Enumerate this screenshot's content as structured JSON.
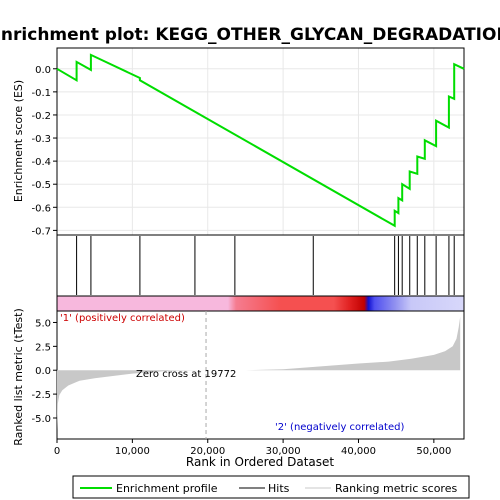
{
  "title": "Enrichment plot: KEGG_OTHER_GLYCAN_DEGRADATION",
  "colors": {
    "es_line": "#00dd00",
    "hit_line": "#000000",
    "metric_fill": "#c8c8c8",
    "zero_line": "#aaaaaa",
    "pos_label": "#cc0000",
    "neg_label": "#0000cc"
  },
  "chart_data": [
    {
      "panel": "enrichment-score",
      "type": "line",
      "ylabel": "Enrichment score (ES)",
      "xlim": [
        0,
        54000
      ],
      "ylim": [
        -0.72,
        0.09
      ],
      "yticks": [
        0.0,
        -0.1,
        -0.2,
        -0.3,
        -0.4,
        -0.5,
        -0.6,
        -0.7
      ],
      "ytick_labels": [
        "0.0",
        "-0.1",
        "-0.2",
        "-0.3",
        "-0.4",
        "-0.5",
        "-0.6",
        "-0.7"
      ],
      "grid": true,
      "series": [
        {
          "x": [
            0,
            2600,
            2600,
            4500,
            4500,
            11000,
            11000,
            44800,
            44800,
            45300,
            45300,
            45800,
            45800,
            46800,
            46800,
            47800,
            47800,
            48800,
            48800,
            50300,
            50300,
            52000,
            52000,
            52700,
            52700,
            54000
          ],
          "y": [
            0.0,
            -0.05,
            0.03,
            -0.005,
            0.06,
            -0.04,
            -0.05,
            -0.68,
            -0.615,
            -0.625,
            -0.56,
            -0.57,
            -0.5,
            -0.52,
            -0.445,
            -0.455,
            -0.38,
            -0.39,
            -0.31,
            -0.335,
            -0.225,
            -0.255,
            -0.12,
            -0.13,
            0.02,
            0.0
          ]
        }
      ]
    },
    {
      "panel": "hits",
      "type": "hits",
      "hit_positions": [
        2600,
        4500,
        11000,
        18300,
        23600,
        34000,
        44800,
        45300,
        45800,
        46800,
        47800,
        48800,
        50300,
        52000,
        52700
      ]
    },
    {
      "panel": "ranking-metric",
      "type": "area",
      "title": "Ranked list metric (tTest)",
      "ylabel": "Ranked list metric (tTest)",
      "xlabel": "Rank in Ordered Dataset",
      "xlim": [
        0,
        54000
      ],
      "ylim": [
        -7.2,
        6.2
      ],
      "xticks": [
        0,
        10000,
        20000,
        30000,
        40000,
        50000
      ],
      "xtick_labels": [
        "0",
        "10,000",
        "20,000",
        "30,000",
        "40,000",
        "50,000"
      ],
      "yticks": [
        5.0,
        2.5,
        0.0,
        -2.5,
        -5.0
      ],
      "ytick_labels": [
        "5.0",
        "2.5",
        "0.0",
        "-2.5",
        "-5.0"
      ],
      "x": [
        0,
        100,
        300,
        700,
        1500,
        3000,
        5000,
        10000,
        15000,
        19772,
        25000,
        30000,
        35000,
        40000,
        44000,
        47000,
        50000,
        51500,
        52500,
        53000,
        53300,
        53500
      ],
      "y": [
        -6.3,
        -3.5,
        -2.6,
        -2.1,
        -1.6,
        -1.1,
        -0.85,
        -0.35,
        -0.05,
        0.0,
        0.0,
        0.1,
        0.4,
        0.7,
        0.9,
        1.2,
        1.6,
        2.0,
        2.5,
        3.3,
        4.5,
        5.6
      ],
      "zero_cross_label": "Zero cross at 19772",
      "zero_cross": 19772,
      "pos_label": "'1' (positively correlated)",
      "neg_label": "'2' (negatively correlated)"
    }
  ],
  "legend": {
    "items": [
      {
        "label": "Enrichment profile",
        "color": "#00dd00"
      },
      {
        "label": "Hits",
        "color": "#000000"
      },
      {
        "label": "Ranking metric scores",
        "color": "#c8c8c8"
      }
    ]
  }
}
